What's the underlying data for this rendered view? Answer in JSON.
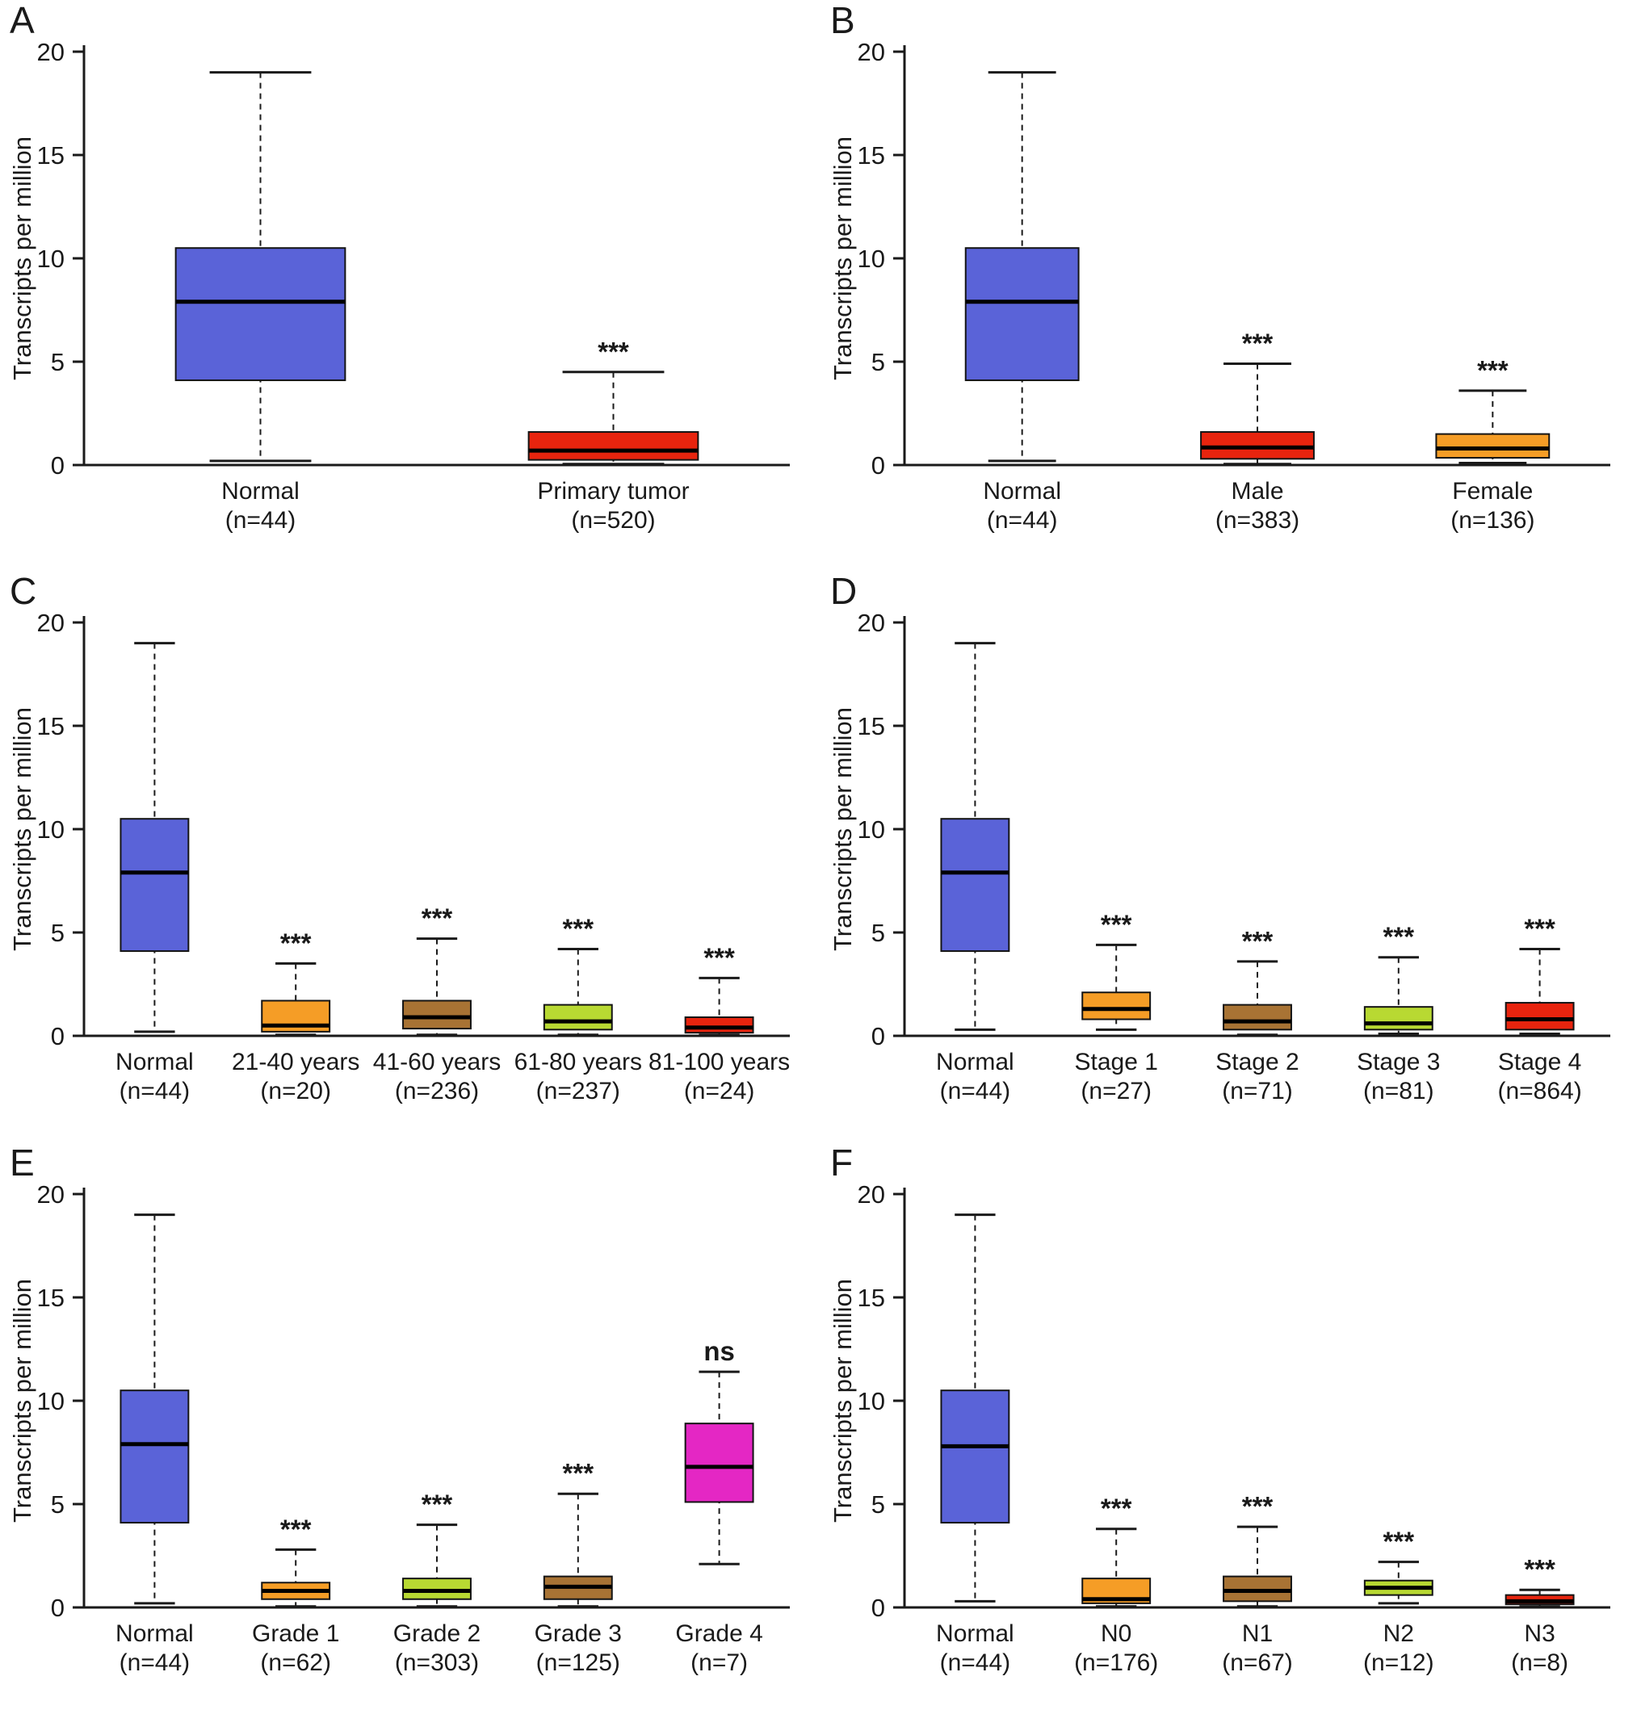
{
  "figure": {
    "background": "#ffffff",
    "axis_color": "#1a1a1a",
    "median_color": "#000000"
  },
  "chart_data": [
    {
      "type": "box",
      "panel_label": "A",
      "ylabel": "Transcripts per million",
      "ylim": [
        0,
        20
      ],
      "yticks": [
        0,
        5,
        10,
        15,
        20
      ],
      "boxes": [
        {
          "category": "Normal",
          "n_label": "(n=44)",
          "color": "#5a63d8",
          "whisker_low": 0.2,
          "q1": 4.1,
          "median": 7.9,
          "q3": 10.5,
          "whisker_high": 19.0,
          "significance": ""
        },
        {
          "category": "Primary tumor",
          "n_label": "(n=520)",
          "color": "#e8240e",
          "whisker_low": 0.05,
          "q1": 0.25,
          "median": 0.7,
          "q3": 1.6,
          "whisker_high": 4.5,
          "significance": "***"
        }
      ]
    },
    {
      "type": "box",
      "panel_label": "B",
      "ylabel": "Transcripts per million",
      "ylim": [
        0,
        20
      ],
      "yticks": [
        0,
        5,
        10,
        15,
        20
      ],
      "boxes": [
        {
          "category": "Normal",
          "n_label": "(n=44)",
          "color": "#5a63d8",
          "whisker_low": 0.2,
          "q1": 4.1,
          "median": 7.9,
          "q3": 10.5,
          "whisker_high": 19.0,
          "significance": ""
        },
        {
          "category": "Male",
          "n_label": "(n=383)",
          "color": "#e8240e",
          "whisker_low": 0.05,
          "q1": 0.3,
          "median": 0.85,
          "q3": 1.6,
          "whisker_high": 4.9,
          "significance": "***"
        },
        {
          "category": "Female",
          "n_label": "(n=136)",
          "color": "#f59d26",
          "whisker_low": 0.1,
          "q1": 0.35,
          "median": 0.8,
          "q3": 1.5,
          "whisker_high": 3.6,
          "significance": "***"
        }
      ]
    },
    {
      "type": "box",
      "panel_label": "C",
      "ylabel": "Transcripts per million",
      "ylim": [
        0,
        20
      ],
      "yticks": [
        0,
        5,
        10,
        15,
        20
      ],
      "boxes": [
        {
          "category": "Normal",
          "n_label": "(n=44)",
          "color": "#5a63d8",
          "whisker_low": 0.2,
          "q1": 4.1,
          "median": 7.9,
          "q3": 10.5,
          "whisker_high": 19.0,
          "significance": ""
        },
        {
          "category": "21-40 years",
          "n_label": "(n=20)",
          "color": "#f59d26",
          "whisker_low": 0.05,
          "q1": 0.2,
          "median": 0.5,
          "q3": 1.7,
          "whisker_high": 3.5,
          "significance": "***"
        },
        {
          "category": "41-60 years",
          "n_label": "(n=236)",
          "color": "#a87334",
          "whisker_low": 0.05,
          "q1": 0.35,
          "median": 0.9,
          "q3": 1.7,
          "whisker_high": 4.7,
          "significance": "***"
        },
        {
          "category": "61-80 years",
          "n_label": "(n=237)",
          "color": "#b8d932",
          "whisker_low": 0.05,
          "q1": 0.3,
          "median": 0.7,
          "q3": 1.5,
          "whisker_high": 4.2,
          "significance": "***"
        },
        {
          "category": "81-100 years",
          "n_label": "(n=24)",
          "color": "#e8240e",
          "whisker_low": 0.05,
          "q1": 0.15,
          "median": 0.4,
          "q3": 0.9,
          "whisker_high": 2.8,
          "significance": "***"
        }
      ]
    },
    {
      "type": "box",
      "panel_label": "D",
      "ylabel": "Transcripts per million",
      "ylim": [
        0,
        20
      ],
      "yticks": [
        0,
        5,
        10,
        15,
        20
      ],
      "boxes": [
        {
          "category": "Normal",
          "n_label": "(n=44)",
          "color": "#5a63d8",
          "whisker_low": 0.3,
          "q1": 4.1,
          "median": 7.9,
          "q3": 10.5,
          "whisker_high": 19.0,
          "significance": ""
        },
        {
          "category": "Stage 1",
          "n_label": "(n=27)",
          "color": "#f59d26",
          "whisker_low": 0.3,
          "q1": 0.8,
          "median": 1.3,
          "q3": 2.1,
          "whisker_high": 4.4,
          "significance": "***"
        },
        {
          "category": "Stage 2",
          "n_label": "(n=71)",
          "color": "#a87334",
          "whisker_low": 0.05,
          "q1": 0.3,
          "median": 0.7,
          "q3": 1.5,
          "whisker_high": 3.6,
          "significance": "***"
        },
        {
          "category": "Stage 3",
          "n_label": "(n=81)",
          "color": "#b8d932",
          "whisker_low": 0.1,
          "q1": 0.3,
          "median": 0.6,
          "q3": 1.4,
          "whisker_high": 3.8,
          "significance": "***"
        },
        {
          "category": "Stage 4",
          "n_label": "(n=864)",
          "color": "#e8240e",
          "whisker_low": 0.1,
          "q1": 0.3,
          "median": 0.8,
          "q3": 1.6,
          "whisker_high": 4.2,
          "significance": "***"
        }
      ]
    },
    {
      "type": "box",
      "panel_label": "E",
      "ylabel": "Transcripts per million",
      "ylim": [
        0,
        20
      ],
      "yticks": [
        0,
        5,
        10,
        15,
        20
      ],
      "boxes": [
        {
          "category": "Normal",
          "n_label": "(n=44)",
          "color": "#5a63d8",
          "whisker_low": 0.2,
          "q1": 4.1,
          "median": 7.9,
          "q3": 10.5,
          "whisker_high": 19.0,
          "significance": ""
        },
        {
          "category": "Grade 1",
          "n_label": "(n=62)",
          "color": "#f59d26",
          "whisker_low": 0.05,
          "q1": 0.4,
          "median": 0.8,
          "q3": 1.2,
          "whisker_high": 2.8,
          "significance": "***"
        },
        {
          "category": "Grade 2",
          "n_label": "(n=303)",
          "color": "#b8d932",
          "whisker_low": 0.05,
          "q1": 0.4,
          "median": 0.8,
          "q3": 1.4,
          "whisker_high": 4.0,
          "significance": "***"
        },
        {
          "category": "Grade 3",
          "n_label": "(n=125)",
          "color": "#a87334",
          "whisker_low": 0.05,
          "q1": 0.4,
          "median": 1.0,
          "q3": 1.5,
          "whisker_high": 5.5,
          "significance": "***"
        },
        {
          "category": "Grade 4",
          "n_label": "(n=7)",
          "color": "#e427c4",
          "whisker_low": 2.1,
          "q1": 5.1,
          "median": 6.8,
          "q3": 8.9,
          "whisker_high": 11.4,
          "significance": "ns"
        }
      ]
    },
    {
      "type": "box",
      "panel_label": "F",
      "ylabel": "Transcripts per million",
      "ylim": [
        0,
        20
      ],
      "yticks": [
        0,
        5,
        10,
        15,
        20
      ],
      "boxes": [
        {
          "category": "Normal",
          "n_label": "(n=44)",
          "color": "#5a63d8",
          "whisker_low": 0.3,
          "q1": 4.1,
          "median": 7.8,
          "q3": 10.5,
          "whisker_high": 19.0,
          "significance": ""
        },
        {
          "category": "N0",
          "n_label": "(n=176)",
          "color": "#f59d26",
          "whisker_low": 0.05,
          "q1": 0.2,
          "median": 0.4,
          "q3": 1.4,
          "whisker_high": 3.8,
          "significance": "***"
        },
        {
          "category": "N1",
          "n_label": "(n=67)",
          "color": "#a87334",
          "whisker_low": 0.05,
          "q1": 0.3,
          "median": 0.8,
          "q3": 1.5,
          "whisker_high": 3.9,
          "significance": "***"
        },
        {
          "category": "N2",
          "n_label": "(n=12)",
          "color": "#b8d932",
          "whisker_low": 0.2,
          "q1": 0.6,
          "median": 0.95,
          "q3": 1.3,
          "whisker_high": 2.2,
          "significance": "***"
        },
        {
          "category": "N3",
          "n_label": "(n=8)",
          "color": "#e8240e",
          "whisker_low": 0.05,
          "q1": 0.15,
          "median": 0.3,
          "q3": 0.6,
          "whisker_high": 0.85,
          "significance": "***"
        }
      ]
    }
  ]
}
